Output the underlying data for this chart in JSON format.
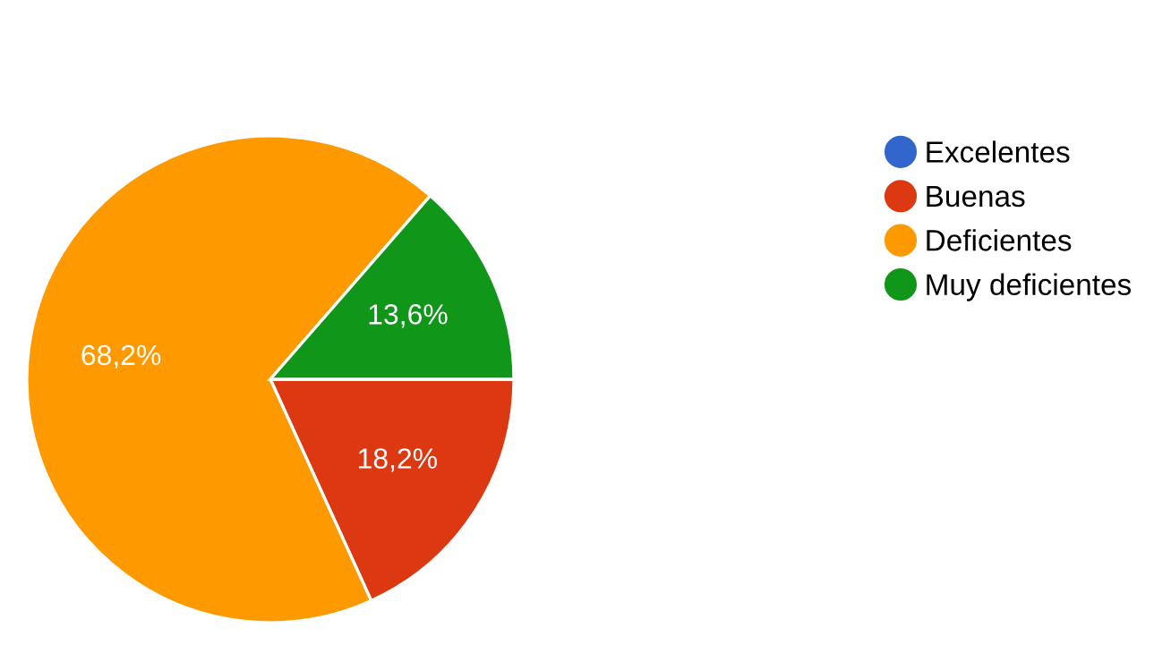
{
  "chart_data": {
    "type": "pie",
    "categories": [
      "Excelentes",
      "Buenas",
      "Deficientes",
      "Muy deficientes"
    ],
    "values": [
      0,
      18.2,
      68.2,
      13.6
    ],
    "value_labels": [
      null,
      "18,2%",
      "68,2%",
      "13,6%"
    ],
    "colors": [
      "#3366cc",
      "#dc3912",
      "#ff9900",
      "#109618"
    ],
    "legend": "right"
  }
}
